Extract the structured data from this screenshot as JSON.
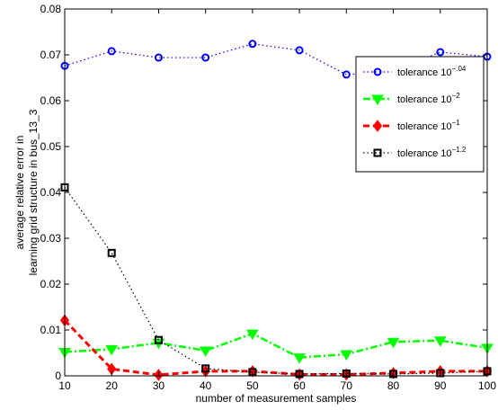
{
  "chart_data": {
    "type": "line",
    "xlabel": "number of measurement samples",
    "ylabel": [
      "average relative error in",
      "learning grid structure in bus_13_3"
    ],
    "x": [
      10,
      20,
      30,
      40,
      50,
      60,
      70,
      80,
      90,
      100
    ],
    "xlim": [
      10,
      100
    ],
    "ylim": [
      0,
      0.08
    ],
    "x_ticks": [
      "10",
      "20",
      "30",
      "40",
      "50",
      "60",
      "70",
      "80",
      "90",
      "100"
    ],
    "y_ticks": [
      "0",
      "0.01",
      "0.02",
      "0.03",
      "0.04",
      "0.05",
      "0.06",
      "0.07",
      "0.08"
    ],
    "grid": false,
    "legend_position": "upper-right",
    "series": [
      {
        "name": "tolerance 10",
        "exponent": "−.04",
        "color": "#0000ff",
        "line_style": "dotted",
        "marker": "circle",
        "values": [
          0.0676,
          0.0708,
          0.0694,
          0.0694,
          0.0724,
          0.071,
          0.0657,
          0.0663,
          0.0706,
          0.0696
        ]
      },
      {
        "name": "tolerance 10",
        "exponent": "−2",
        "color": "#00ff00",
        "line_style": "dash-dot",
        "marker": "triangle-down",
        "values": [
          0.0052,
          0.0058,
          0.0072,
          0.0055,
          0.0092,
          0.004,
          0.0047,
          0.0074,
          0.0077,
          0.0061
        ]
      },
      {
        "name": "tolerance 10",
        "exponent": "−1",
        "color": "#ff0000",
        "line_style": "dashed",
        "marker": "diamond",
        "values": [
          0.0121,
          0.0015,
          0.0002,
          0.001,
          0.001,
          0.0003,
          0.0003,
          0.0006,
          0.001,
          0.001
        ]
      },
      {
        "name": "tolerance 10",
        "exponent": "−1.2",
        "color": "#000000",
        "line_style": "dotted",
        "marker": "square",
        "values": [
          0.0411,
          0.0268,
          0.0078,
          0.0016,
          0.0008,
          0.0004,
          0.0005,
          0.0004,
          0.0006,
          0.001
        ]
      }
    ]
  }
}
